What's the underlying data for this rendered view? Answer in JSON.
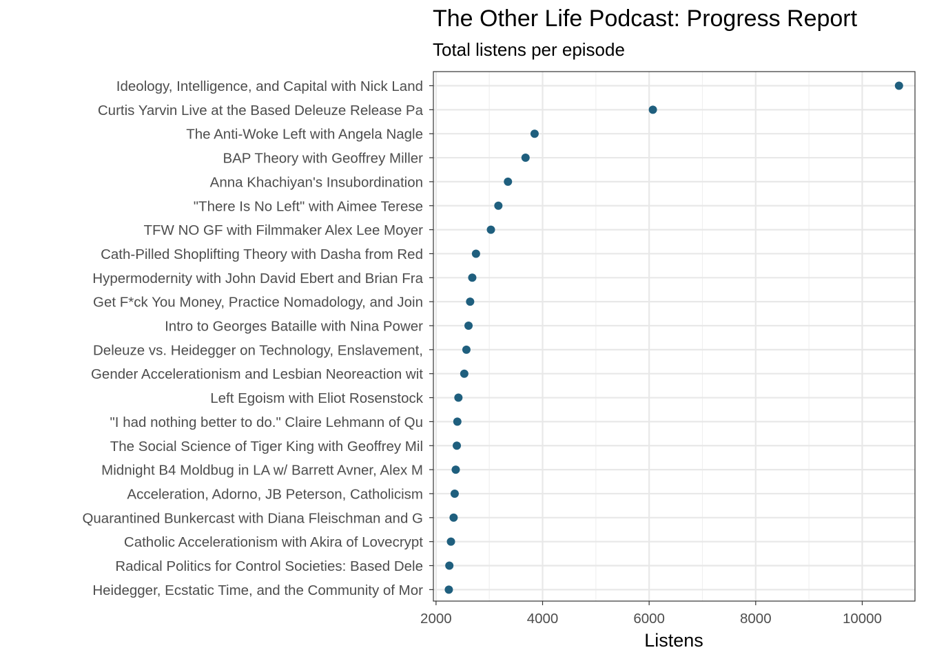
{
  "chart_data": {
    "type": "scatter",
    "title": "The Other Life Podcast: Progress Report",
    "subtitle": "Total listens per episode",
    "xlabel": "Listens",
    "ylabel": "",
    "xlim": [
      1950,
      10990
    ],
    "x_ticks": [
      2000,
      4000,
      6000,
      8000,
      10000
    ],
    "x_tick_labels": [
      "2000",
      "4000",
      "6000",
      "8000",
      "10000"
    ],
    "grid": true,
    "point_color": "#1f5f7e",
    "categories": [
      "Ideology, Intelligence, and Capital with Nick Land",
      "Curtis Yarvin Live at the Based Deleuze Release Pa",
      "The Anti-Woke Left with Angela Nagle",
      "BAP Theory with Geoffrey Miller",
      "Anna Khachiyan's Insubordination",
      "\"There Is No Left\" with Aimee Terese",
      "TFW NO GF with Filmmaker Alex Lee Moyer",
      "Cath-Pilled Shoplifting Theory with Dasha from Red",
      "Hypermodernity with John David Ebert and Brian Fra",
      "Get F*ck You Money, Practice Nomadology, and Join ",
      "Intro to Georges Bataille with Nina Power",
      "Deleuze vs. Heidegger on Technology, Enslavement, ",
      "Gender Accelerationism and Lesbian Neoreaction wit",
      "Left Egoism with Eliot Rosenstock",
      "\"I had nothing better to do.\" Claire Lehmann of Qu",
      "The Social Science of Tiger King with Geoffrey Mil",
      "Midnight B4 Moldbug in LA w/ Barrett Avner, Alex M",
      "Acceleration, Adorno, JB Peterson, Catholicism",
      "Quarantined Bunkercast with Diana Fleischman and G",
      "Catholic Accelerationism with Akira of Lovecrypt",
      "Radical Politics for Control Societies: Based Dele",
      "Heidegger, Ecstatic Time, and the Community of Mor"
    ],
    "values": [
      10690,
      6070,
      3850,
      3680,
      3350,
      3170,
      3030,
      2750,
      2680,
      2640,
      2610,
      2570,
      2530,
      2420,
      2400,
      2390,
      2370,
      2350,
      2330,
      2280,
      2250,
      2240
    ]
  }
}
